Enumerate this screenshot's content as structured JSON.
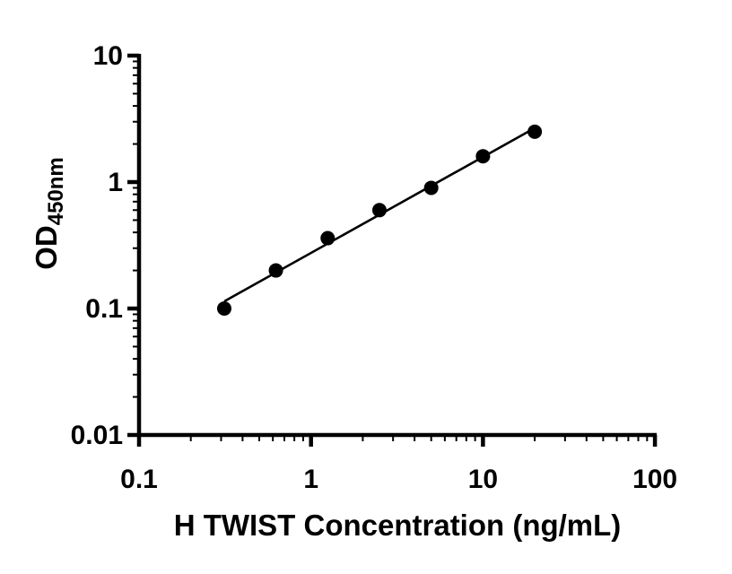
{
  "chart_data": {
    "type": "scatter",
    "x": [
      0.313,
      0.625,
      1.25,
      2.5,
      5,
      10,
      20
    ],
    "y": [
      0.1,
      0.2,
      0.36,
      0.6,
      0.9,
      1.6,
      2.5
    ],
    "title": "",
    "xlabel": "H TWIST Concentration (ng/mL)",
    "ylabel_main": "OD",
    "ylabel_sub": "450nm",
    "xlim": [
      0.1,
      100
    ],
    "ylim": [
      0.01,
      10
    ],
    "xscale": "log",
    "yscale": "log",
    "x_ticks": [
      "0.1",
      "1",
      "10",
      "100"
    ],
    "y_ticks": [
      "0.01",
      "0.1",
      "1",
      "10"
    ],
    "grid": false,
    "legend": "none",
    "fit": "linear fit in log-log space",
    "marker_color": "#000000",
    "line_color": "#000000",
    "axis_color": "#000000",
    "background_color": "#ffffff"
  }
}
